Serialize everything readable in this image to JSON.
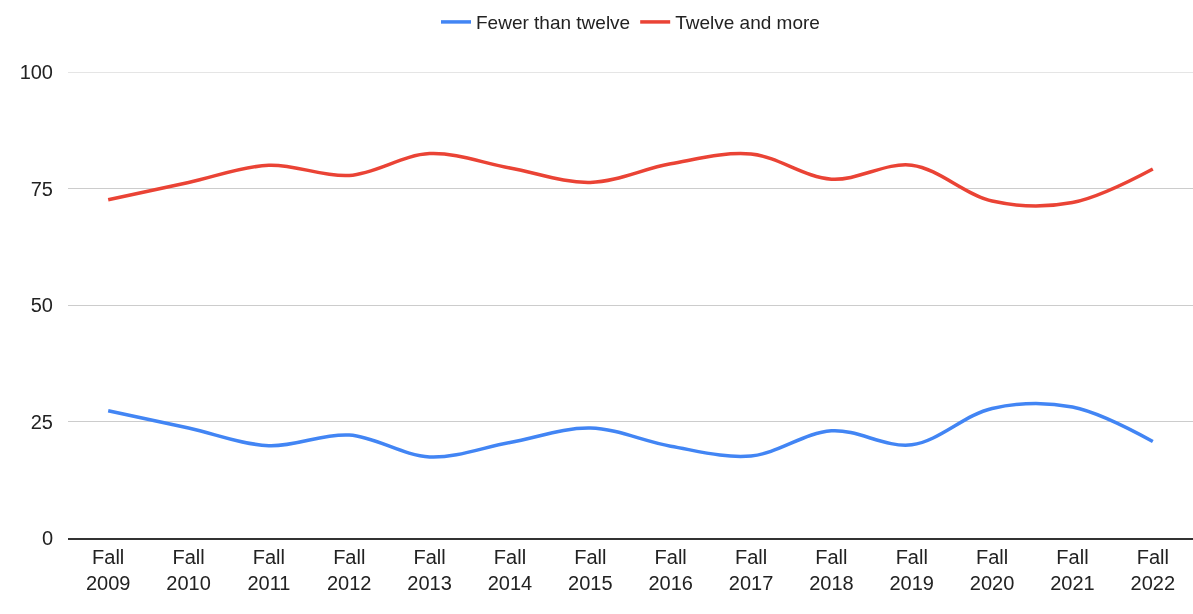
{
  "chart_data": {
    "type": "line",
    "categories": [
      "Fall 2009",
      "Fall 2010",
      "Fall 2011",
      "Fall 2012",
      "Fall 2013",
      "Fall 2014",
      "Fall 2015",
      "Fall 2016",
      "Fall 2017",
      "Fall 2018",
      "Fall 2019",
      "Fall 2020",
      "Fall 2021",
      "Fall 2022"
    ],
    "series": [
      {
        "name": "Fewer than twelve",
        "color": "#4285f4",
        "values": [
          27.3,
          23.6,
          19.8,
          22.1,
          17.4,
          20.5,
          23.6,
          19.7,
          17.6,
          23.0,
          20.0,
          27.8,
          28.1,
          20.7
        ]
      },
      {
        "name": "Twelve and more",
        "color": "#ea4335",
        "values": [
          72.6,
          76.3,
          80.0,
          77.8,
          82.5,
          79.4,
          76.3,
          80.3,
          82.4,
          77.0,
          80.0,
          72.3,
          72.0,
          79.2
        ]
      }
    ],
    "ylim": [
      0,
      100
    ],
    "yticks": [
      0,
      25,
      50,
      75,
      100
    ],
    "grid": "y",
    "legend": "top",
    "marker": "none",
    "line_style": "solid"
  }
}
